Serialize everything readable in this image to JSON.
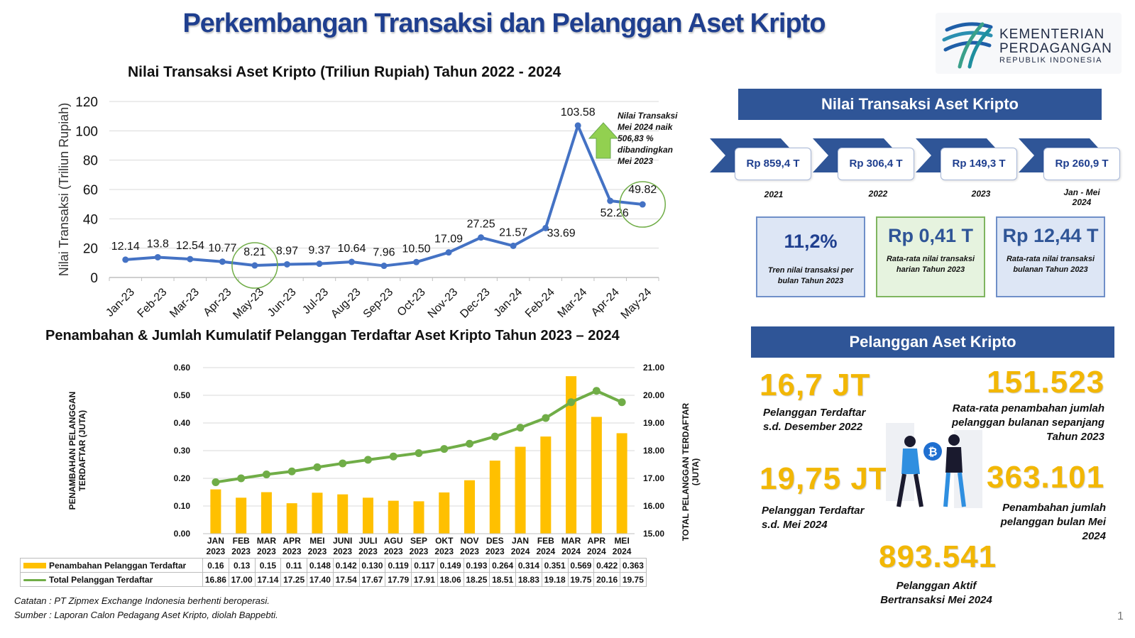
{
  "header": {
    "title": "Perkembangan Transaksi dan Pelanggan Aset Kripto",
    "logo_line1": "KEMENTERIAN",
    "logo_line2": "PERDAGANGAN",
    "logo_line3": "REPUBLIK INDONESIA"
  },
  "colors": {
    "navy": "#2f5597",
    "line_blue": "#4472c4",
    "bar_yellow": "#ffc000",
    "line_green": "#70ad47",
    "stat_gold": "#f2b705"
  },
  "chart_data": [
    {
      "type": "line",
      "title": "Nilai Transaksi Aset Kripto (Triliun Rupiah) Tahun 2022 - 2024",
      "ylabel": "Nilai Transaksi (Triliun Rupiah)",
      "xlabel": "",
      "ylim": [
        0,
        120
      ],
      "yticks": [
        0,
        20,
        40,
        60,
        80,
        100,
        120
      ],
      "grid": true,
      "categories": [
        "Jan-23",
        "Feb-23",
        "Mar-23",
        "Apr-23",
        "May-23",
        "Jun-23",
        "Jul-23",
        "Aug-23",
        "Sep-23",
        "Oct-23",
        "Nov-23",
        "Dec-23",
        "Jan-24",
        "Feb-24",
        "Mar-24",
        "Apr-24",
        "May-24"
      ],
      "values": [
        12.14,
        13.8,
        12.54,
        10.77,
        8.21,
        8.97,
        9.37,
        10.64,
        7.96,
        10.5,
        17.09,
        27.25,
        21.57,
        33.69,
        103.58,
        52.26,
        49.82
      ],
      "labels": [
        "12.14",
        "13.8",
        "12.54",
        "10.77",
        "8.21",
        "8.97",
        "9.37",
        "10.64",
        "7.96",
        "10.50",
        "17.09",
        "27.25",
        "21.57",
        "33.69",
        "103.58",
        "52.26",
        "49.82"
      ],
      "annotation": [
        "Nilai Transaksi",
        "Mei 2024 naik",
        "506,83 %",
        "dibandingkan",
        "Mei 2023"
      ]
    },
    {
      "type": "bar",
      "title": "Penambahan & Jumlah Kumulatif Pelanggan Terdaftar Aset Kripto Tahun 2023 – 2024",
      "ylabel": "PENAMBAHAN PELANGGAN TERDAFTAR (JUTA)",
      "y2label": "TOTAL PELANGGAN TERDAFTAR (JUTA)",
      "ylim": [
        0,
        0.6
      ],
      "yticks": [
        "0.00",
        "0.10",
        "0.20",
        "0.30",
        "0.40",
        "0.50",
        "0.60"
      ],
      "y2lim": [
        15,
        21
      ],
      "y2ticks": [
        "15.00",
        "16.00",
        "17.00",
        "18.00",
        "19.00",
        "20.00",
        "21.00"
      ],
      "grid": true,
      "categories": [
        [
          "JAN",
          "2023"
        ],
        [
          "FEB",
          "2023"
        ],
        [
          "MAR",
          "2023"
        ],
        [
          "APR",
          "2023"
        ],
        [
          "MEI",
          "2023"
        ],
        [
          "JUNI",
          "2023"
        ],
        [
          "JULI",
          "2023"
        ],
        [
          "AGU",
          "2023"
        ],
        [
          "SEP",
          "2023"
        ],
        [
          "OKT",
          "2023"
        ],
        [
          "NOV",
          "2023"
        ],
        [
          "DES",
          "2023"
        ],
        [
          "JAN",
          "2024"
        ],
        [
          "FEB",
          "2024"
        ],
        [
          "MAR",
          "2024"
        ],
        [
          "APR",
          "2024"
        ],
        [
          "MEI",
          "2024"
        ]
      ],
      "series": [
        {
          "name": "Penambahan Pelanggan Terdaftar",
          "type": "bar",
          "values": [
            0.16,
            0.13,
            0.15,
            0.11,
            0.148,
            0.142,
            0.13,
            0.119,
            0.117,
            0.149,
            0.193,
            0.264,
            0.314,
            0.351,
            0.569,
            0.422,
            0.363
          ],
          "labels": [
            "0.16",
            "0.13",
            "0.15",
            "0.11",
            "0.148",
            "0.142",
            "0.130",
            "0.119",
            "0.117",
            "0.149",
            "0.193",
            "0.264",
            "0.314",
            "0.351",
            "0.569",
            "0.422",
            "0.363"
          ]
        },
        {
          "name": "Total Pelanggan Terdaftar",
          "type": "line",
          "values": [
            16.86,
            17.0,
            17.14,
            17.25,
            17.4,
            17.54,
            17.67,
            17.79,
            17.91,
            18.06,
            18.25,
            18.51,
            18.83,
            19.18,
            19.75,
            20.16,
            19.75
          ],
          "labels": [
            "16.86",
            "17.00",
            "17.14",
            "17.25",
            "17.40",
            "17.54",
            "17.67",
            "17.79",
            "17.91",
            "18.06",
            "18.25",
            "18.51",
            "18.83",
            "19.18",
            "19.75",
            "20.16",
            "19.75"
          ]
        }
      ]
    }
  ],
  "transaksi": {
    "header": "Nilai Transaksi Aset Kripto",
    "years": [
      {
        "value": "Rp 859,4 T",
        "year": "2021"
      },
      {
        "value": "Rp 306,4 T",
        "year": "2022"
      },
      {
        "value": "Rp 149,3 T",
        "year": "2023"
      },
      {
        "value": "Rp 260,9 T",
        "year": "Jan - Mei 2024"
      }
    ],
    "kpis": [
      {
        "value": "11,2%",
        "desc": "Tren nilai transaksi per bulan Tahun 2023"
      },
      {
        "value": "Rp 0,41 T",
        "desc": "Rata-rata nilai transaksi harian Tahun 2023"
      },
      {
        "value": "Rp 12,44 T",
        "desc": "Rata-rata nilai transaksi bulanan Tahun 2023"
      }
    ]
  },
  "pelanggan": {
    "header": "Pelanggan Aset Kripto",
    "stats": [
      {
        "value": "16,7 JT",
        "desc": "Pelanggan Terdaftar s.d. Desember 2022"
      },
      {
        "value": "151.523",
        "desc": "Rata-rata penambahan jumlah pelanggan bulanan sepanjang Tahun 2023"
      },
      {
        "value": "19,75 JT",
        "desc": "Pelanggan Terdaftar s.d. Mei 2024"
      },
      {
        "value": "363.101",
        "desc": "Penambahan jumlah pelanggan bulan Mei 2024"
      },
      {
        "value": "893.541",
        "desc": "Pelanggan Aktif Bertransaksi Mei 2024"
      }
    ]
  },
  "footer": {
    "catatan": "Catatan : PT Zipmex Exchange Indonesia berhenti beroperasi.",
    "sumber": "Sumber : Laporan Calon Pedagang Aset Kripto, diolah Bappebti.",
    "page": "1"
  }
}
